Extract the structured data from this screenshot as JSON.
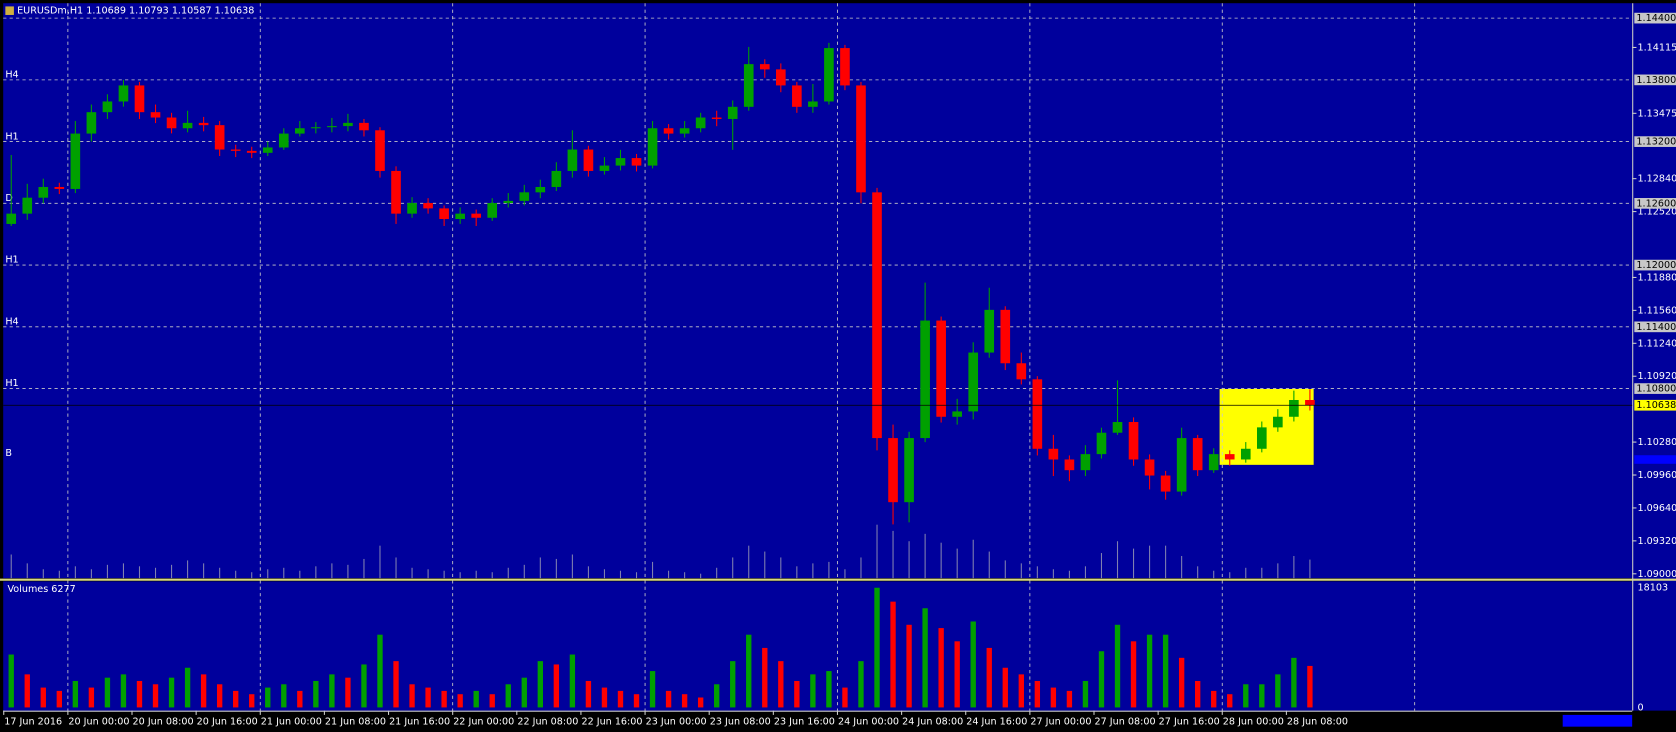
{
  "chart_data": {
    "type": "candlestick",
    "title": "EURUSDm,H1  1.10689 1.10793 1.10587 1.10638",
    "volume_title": "Volumes 6277",
    "up_color": "#00a000",
    "down_color": "#ff0000",
    "background": "#00009c",
    "xlim": [
      0,
      101.6
    ],
    "ylim": [
      1.08958,
      1.14545
    ],
    "vlim": [
      0,
      18103
    ],
    "grid": true,
    "xgrid": [
      4,
      16,
      28,
      40,
      52,
      64,
      76,
      88
    ],
    "xticks": [
      {
        "value": 0,
        "label": "17 Jun 2016"
      },
      {
        "value": 4,
        "label": "20 Jun 00:00"
      },
      {
        "value": 8,
        "label": "20 Jun 08:00"
      },
      {
        "value": 12,
        "label": "20 Jun 16:00"
      },
      {
        "value": 16,
        "label": "21 Jun 00:00"
      },
      {
        "value": 20,
        "label": "21 Jun 08:00"
      },
      {
        "value": 24,
        "label": "21 Jun 16:00"
      },
      {
        "value": 28,
        "label": "22 Jun 00:00"
      },
      {
        "value": 32,
        "label": "22 Jun 08:00"
      },
      {
        "value": 36,
        "label": "22 Jun 16:00"
      },
      {
        "value": 40,
        "label": "23 Jun 00:00"
      },
      {
        "value": 44,
        "label": "23 Jun 08:00"
      },
      {
        "value": 48,
        "label": "23 Jun 16:00"
      },
      {
        "value": 52,
        "label": "24 Jun 00:00"
      },
      {
        "value": 56,
        "label": "24 Jun 08:00"
      },
      {
        "value": 60,
        "label": "24 Jun 16:00"
      },
      {
        "value": 64,
        "label": "27 Jun 00:00"
      },
      {
        "value": 68,
        "label": "27 Jun 08:00"
      },
      {
        "value": 72,
        "label": "27 Jun 16:00"
      },
      {
        "value": 76,
        "label": "28 Jun 00:00"
      },
      {
        "value": 80,
        "label": "28 Jun 08:00"
      }
    ],
    "yticks": [
      {
        "value": 1.14115,
        "label": "1.14115"
      },
      {
        "value": 1.13475,
        "label": "1.13475"
      },
      {
        "value": 1.1284,
        "label": "1.12840"
      },
      {
        "value": 1.1252,
        "label": "1.12520"
      },
      {
        "value": 1.1188,
        "label": "1.11880"
      },
      {
        "value": 1.1156,
        "label": "1.11560"
      },
      {
        "value": 1.1124,
        "label": "1.11240"
      },
      {
        "value": 1.1092,
        "label": "1.10920"
      },
      {
        "value": 1.1028,
        "label": "1.10280"
      },
      {
        "value": 1.0996,
        "label": "1.09960"
      },
      {
        "value": 1.0964,
        "label": "1.09640"
      },
      {
        "value": 1.0932,
        "label": "1.09320"
      },
      {
        "value": 1.09,
        "label": "1.09000"
      }
    ],
    "levels": [
      {
        "value": 1.144,
        "label": "1.14400"
      },
      {
        "value": 1.138,
        "label": "1.13800",
        "name": "H4"
      },
      {
        "value": 1.132,
        "label": "1.13200",
        "name": "H1"
      },
      {
        "value": 1.126,
        "label": "1.12600",
        "name": "D"
      },
      {
        "value": 1.12,
        "label": "1.12000",
        "name": "H1"
      },
      {
        "value": 1.114,
        "label": "1.11400",
        "name": "H4"
      },
      {
        "value": 1.108,
        "label": "1.10800",
        "name": "H1"
      },
      {
        "value": 1.10121,
        "name": "B"
      }
    ],
    "vticks": [
      18103,
      0
    ],
    "open": [
      1.124,
      1.125,
      1.12655,
      1.12759,
      1.1274,
      1.13278,
      1.13486,
      1.1359,
      1.13746,
      1.13486,
      1.13434,
      1.1333,
      1.13382,
      1.1336,
      1.13123,
      1.1311,
      1.13091,
      1.13143,
      1.13278,
      1.1333,
      1.1334,
      1.13351,
      1.13382,
      1.1331,
      1.12915,
      1.125,
      1.12603,
      1.12551,
      1.12448,
      1.125,
      1.1246,
      1.12603,
      1.12624,
      1.12707,
      1.12759,
      1.12915,
      1.13123,
      1.12915,
      1.12967,
      1.1304,
      1.12967,
      1.1333,
      1.13278,
      1.1333,
      1.13434,
      1.1342,
      1.13538,
      1.13953,
      1.13902,
      1.13746,
      1.13538,
      1.1359,
      1.14109,
      1.13746,
      1.12707,
      1.10319,
      1.09696,
      1.10319,
      1.11461,
      1.10526,
      1.10578,
      1.1115,
      1.11565,
      1.11046,
      1.1089,
      1.10215,
      1.10111,
      1.10007,
      1.10163,
      1.10371,
      1.10475,
      1.10111,
      1.09955,
      1.09799,
      1.10319,
      1.10007,
      1.10163,
      1.10111,
      1.10215,
      1.10423,
      1.10526,
      1.10689
    ],
    "high": [
      1.1307,
      1.1279,
      1.1284,
      1.128,
      1.134,
      1.1356,
      1.1366,
      1.138,
      1.1378,
      1.1356,
      1.1348,
      1.135,
      1.1344,
      1.134,
      1.1317,
      1.1315,
      1.132,
      1.1333,
      1.134,
      1.1339,
      1.1343,
      1.1347,
      1.1342,
      1.1334,
      1.1296,
      1.1266,
      1.1265,
      1.1258,
      1.1256,
      1.1254,
      1.1265,
      1.127,
      1.1278,
      1.1283,
      1.13,
      1.1331,
      1.1316,
      1.1305,
      1.1312,
      1.1308,
      1.134,
      1.1337,
      1.134,
      1.1348,
      1.135,
      1.136,
      1.1412,
      1.14,
      1.1396,
      1.1378,
      1.1376,
      1.1416,
      1.1414,
      1.1378,
      1.1275,
      1.1045,
      1.1038,
      1.1183,
      1.115,
      1.107,
      1.1125,
      1.1178,
      1.116,
      1.1115,
      1.1092,
      1.1035,
      1.1015,
      1.1025,
      1.1042,
      1.1088,
      1.1052,
      1.1016,
      1.1,
      1.1042,
      1.1035,
      1.1022,
      1.102,
      1.1028,
      1.1048,
      1.106,
      1.1078,
      1.10793
    ],
    "low": [
      1.1238,
      1.1244,
      1.126,
      1.1269,
      1.127,
      1.132,
      1.1342,
      1.1354,
      1.1342,
      1.1338,
      1.1328,
      1.1329,
      1.133,
      1.1306,
      1.1305,
      1.1304,
      1.1306,
      1.1312,
      1.1325,
      1.1328,
      1.1329,
      1.133,
      1.1325,
      1.1285,
      1.124,
      1.1246,
      1.125,
      1.1238,
      1.124,
      1.1238,
      1.1243,
      1.1256,
      1.1258,
      1.1265,
      1.1272,
      1.1285,
      1.1286,
      1.1288,
      1.1292,
      1.1291,
      1.1294,
      1.1322,
      1.1324,
      1.1329,
      1.1335,
      1.1312,
      1.135,
      1.1382,
      1.1368,
      1.1348,
      1.1348,
      1.1356,
      1.137,
      1.126,
      1.102,
      1.0948,
      1.095,
      1.1028,
      1.1047,
      1.1045,
      1.105,
      1.111,
      1.1098,
      1.1084,
      1.1015,
      1.0995,
      1.099,
      1.0995,
      1.1012,
      1.1035,
      1.1005,
      1.0982,
      1.0972,
      1.0976,
      1.0995,
      1.0998,
      1.1005,
      1.1008,
      1.1018,
      1.1038,
      1.1048,
      1.10587
    ],
    "close": [
      1.125,
      1.12655,
      1.12759,
      1.1274,
      1.13278,
      1.13486,
      1.1359,
      1.13746,
      1.13486,
      1.13434,
      1.1333,
      1.13382,
      1.1336,
      1.13123,
      1.1311,
      1.13091,
      1.13143,
      1.13278,
      1.1333,
      1.1334,
      1.13351,
      1.13382,
      1.1331,
      1.12915,
      1.125,
      1.12603,
      1.12551,
      1.12448,
      1.125,
      1.1246,
      1.12603,
      1.12624,
      1.12707,
      1.12759,
      1.12915,
      1.13123,
      1.12915,
      1.12967,
      1.1304,
      1.12967,
      1.1333,
      1.13278,
      1.1333,
      1.13434,
      1.1342,
      1.13538,
      1.13953,
      1.13902,
      1.13746,
      1.13538,
      1.1359,
      1.14109,
      1.13746,
      1.12707,
      1.10319,
      1.09696,
      1.10319,
      1.11461,
      1.10526,
      1.10578,
      1.1115,
      1.11565,
      1.11046,
      1.1089,
      1.10215,
      1.10111,
      1.10007,
      1.10163,
      1.10371,
      1.10475,
      1.10111,
      1.09955,
      1.09799,
      1.10319,
      1.10007,
      1.10163,
      1.10111,
      1.10215,
      1.10423,
      1.10526,
      1.10689,
      1.10638
    ],
    "volume": [
      8000,
      5000,
      3000,
      2500,
      4000,
      3000,
      4500,
      5000,
      4000,
      3500,
      4500,
      6000,
      5000,
      3500,
      2500,
      2000,
      3000,
      3500,
      2500,
      4000,
      5000,
      4500,
      6500,
      11000,
      7000,
      3500,
      3000,
      2500,
      2000,
      2500,
      2000,
      3500,
      4500,
      7000,
      6500,
      8000,
      4000,
      3000,
      2500,
      2000,
      5500,
      2500,
      2000,
      1500,
      3500,
      7000,
      11000,
      9000,
      7000,
      4000,
      5000,
      5500,
      3000,
      7000,
      18103,
      16000,
      12500,
      15000,
      12000,
      10000,
      13000,
      9000,
      6000,
      5000,
      4000,
      3000,
      2500,
      4000,
      8500,
      12500,
      10000,
      11000,
      11000,
      7500,
      4000,
      2500,
      2000,
      3500,
      3500,
      5000,
      7500,
      6277
    ]
  }
}
